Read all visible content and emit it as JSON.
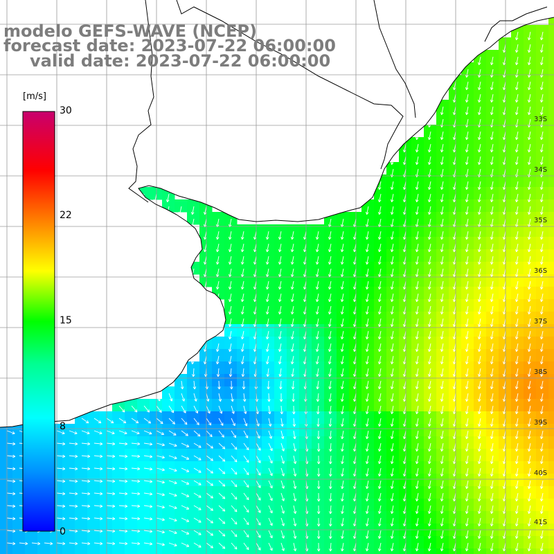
{
  "title": {
    "model": "modelo GEFS-WAVE (NCEP)",
    "forecast": "forecast date: 2023-07-22 06:00:00",
    "valid": "valid date: 2023-07-22 06:00:00"
  },
  "colorbar": {
    "unit": "[m/s]",
    "min": 0,
    "max": 30,
    "ticks": [
      "30",
      "22",
      "15",
      "8",
      "0"
    ],
    "tick_values": [
      30,
      22,
      15,
      8,
      0
    ],
    "colors": [
      "#0000ff",
      "#00c8ff",
      "#00ffff",
      "#00ff00",
      "#ffff00",
      "#ff8000",
      "#ff0000",
      "#c8006e"
    ]
  },
  "map": {
    "latitude_labels": [
      "33S",
      "34S",
      "35S",
      "36S",
      "37S",
      "38S",
      "39S",
      "40S",
      "41S"
    ],
    "land_color": "#ffffff",
    "coastline_color": "#000000",
    "grid_color": "#9a9a9a"
  }
}
